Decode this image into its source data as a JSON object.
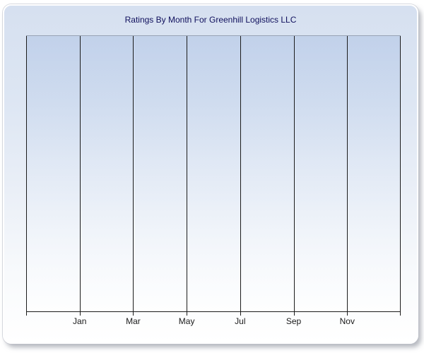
{
  "chart_data": {
    "type": "bar",
    "title": "Ratings By Month For Greenhill Logistics LLC",
    "categories": [
      "Jan",
      "Mar",
      "May",
      "Jul",
      "Sep",
      "Nov"
    ],
    "values": [],
    "series": [],
    "xlabel": "",
    "ylabel": "",
    "legend_position": "none",
    "grid": "vertical-only",
    "x_gridline_count": 8,
    "plot_empty": true
  },
  "colors": {
    "panel_gradient_top": "#d6e0f0",
    "panel_gradient_bottom": "#ffffff",
    "panel_border": "#ffffff",
    "plot_top_border": "#98a2b4",
    "gridline": "#1c1c1c",
    "axis_line": "#1a1a1a",
    "title_text": "#0f0f5c",
    "axis_label_text": "#1a1a1a"
  }
}
